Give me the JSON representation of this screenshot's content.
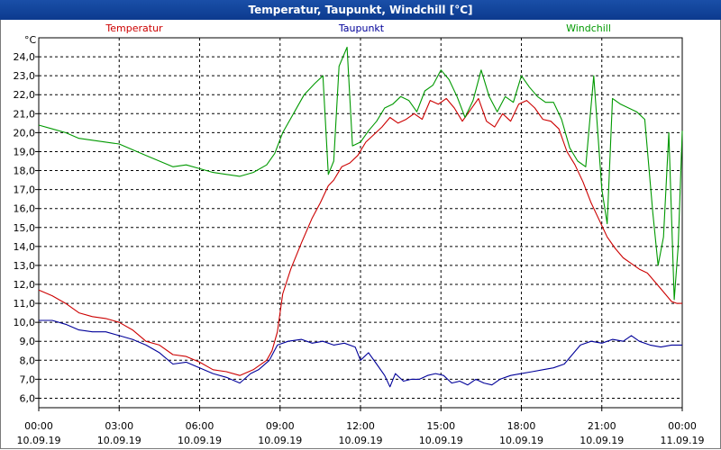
{
  "window": {
    "title": "Temperatur, Taupunkt, Windchill [°C]"
  },
  "chart_data": {
    "type": "line",
    "title": "Temperatur, Taupunkt, Windchill [°C]",
    "unit": "°C",
    "ylim": [
      5.5,
      25.0
    ],
    "yticks": [
      "6,0",
      "7,0",
      "8,0",
      "9,0",
      "10,0",
      "11,0",
      "12,0",
      "13,0",
      "14,0",
      "15,0",
      "16,0",
      "17,0",
      "18,0",
      "19,0",
      "20,0",
      "21,0",
      "22,0",
      "23,0",
      "24,0"
    ],
    "xlim": [
      0,
      24
    ],
    "xticks": [
      {
        "time": "00:00",
        "date": "10.09.19"
      },
      {
        "time": "03:00",
        "date": "10.09.19"
      },
      {
        "time": "06:00",
        "date": "10.09.19"
      },
      {
        "time": "09:00",
        "date": "10.09.19"
      },
      {
        "time": "12:00",
        "date": "10.09.19"
      },
      {
        "time": "15:00",
        "date": "10.09.19"
      },
      {
        "time": "18:00",
        "date": "10.09.19"
      },
      {
        "time": "21:00",
        "date": "10.09.19"
      },
      {
        "time": "00:00",
        "date": "11.09.19"
      }
    ],
    "grid": true,
    "series": [
      {
        "name": "Temperatur",
        "color": "#cc0000",
        "points": [
          [
            0,
            11.7
          ],
          [
            0.5,
            11.4
          ],
          [
            1,
            11.0
          ],
          [
            1.5,
            10.5
          ],
          [
            2,
            10.3
          ],
          [
            2.5,
            10.2
          ],
          [
            3,
            10.0
          ],
          [
            3.5,
            9.6
          ],
          [
            4,
            9.0
          ],
          [
            4.5,
            8.8
          ],
          [
            5,
            8.3
          ],
          [
            5.5,
            8.2
          ],
          [
            6,
            7.9
          ],
          [
            6.5,
            7.5
          ],
          [
            7,
            7.4
          ],
          [
            7.5,
            7.2
          ],
          [
            8,
            7.5
          ],
          [
            8.5,
            8.0
          ],
          [
            8.7,
            8.5
          ],
          [
            8.9,
            9.5
          ],
          [
            9.1,
            11.5
          ],
          [
            9.4,
            12.8
          ],
          [
            9.8,
            14.2
          ],
          [
            10.2,
            15.5
          ],
          [
            10.5,
            16.3
          ],
          [
            10.8,
            17.2
          ],
          [
            11.0,
            17.5
          ],
          [
            11.3,
            18.2
          ],
          [
            11.6,
            18.4
          ],
          [
            11.9,
            18.8
          ],
          [
            12.2,
            19.5
          ],
          [
            12.5,
            19.9
          ],
          [
            12.8,
            20.3
          ],
          [
            13.1,
            20.8
          ],
          [
            13.4,
            20.5
          ],
          [
            13.7,
            20.7
          ],
          [
            14.0,
            21.0
          ],
          [
            14.3,
            20.7
          ],
          [
            14.6,
            21.7
          ],
          [
            14.9,
            21.5
          ],
          [
            15.2,
            21.8
          ],
          [
            15.5,
            21.3
          ],
          [
            15.8,
            20.6
          ],
          [
            16.1,
            21.2
          ],
          [
            16.4,
            21.8
          ],
          [
            16.7,
            20.6
          ],
          [
            17.0,
            20.3
          ],
          [
            17.3,
            21.0
          ],
          [
            17.6,
            20.6
          ],
          [
            17.9,
            21.5
          ],
          [
            18.2,
            21.7
          ],
          [
            18.5,
            21.3
          ],
          [
            18.8,
            20.7
          ],
          [
            19.1,
            20.6
          ],
          [
            19.4,
            20.2
          ],
          [
            19.7,
            19.0
          ],
          [
            20.0,
            18.3
          ],
          [
            20.3,
            17.4
          ],
          [
            20.6,
            16.3
          ],
          [
            20.9,
            15.4
          ],
          [
            21.2,
            14.5
          ],
          [
            21.5,
            13.9
          ],
          [
            21.8,
            13.4
          ],
          [
            22.1,
            13.1
          ],
          [
            22.4,
            12.8
          ],
          [
            22.7,
            12.6
          ],
          [
            23.0,
            12.1
          ],
          [
            23.3,
            11.6
          ],
          [
            23.6,
            11.1
          ],
          [
            23.8,
            11.0
          ],
          [
            24,
            11.0
          ]
        ]
      },
      {
        "name": "Taupunkt",
        "color": "#000099",
        "points": [
          [
            0,
            10.1
          ],
          [
            0.5,
            10.1
          ],
          [
            1,
            9.9
          ],
          [
            1.5,
            9.6
          ],
          [
            2,
            9.5
          ],
          [
            2.5,
            9.5
          ],
          [
            3,
            9.3
          ],
          [
            3.5,
            9.1
          ],
          [
            4,
            8.8
          ],
          [
            4.5,
            8.4
          ],
          [
            5,
            7.8
          ],
          [
            5.5,
            7.9
          ],
          [
            6,
            7.6
          ],
          [
            6.5,
            7.3
          ],
          [
            7,
            7.1
          ],
          [
            7.5,
            6.8
          ],
          [
            7.9,
            7.3
          ],
          [
            8.2,
            7.5
          ],
          [
            8.6,
            8.0
          ],
          [
            8.9,
            8.8
          ],
          [
            9.3,
            9.0
          ],
          [
            9.8,
            9.1
          ],
          [
            10.2,
            8.9
          ],
          [
            10.6,
            9.0
          ],
          [
            11.0,
            8.8
          ],
          [
            11.4,
            8.9
          ],
          [
            11.8,
            8.7
          ],
          [
            12.0,
            8.0
          ],
          [
            12.3,
            8.4
          ],
          [
            12.6,
            7.8
          ],
          [
            12.9,
            7.2
          ],
          [
            13.1,
            6.6
          ],
          [
            13.3,
            7.3
          ],
          [
            13.6,
            6.9
          ],
          [
            13.9,
            7.0
          ],
          [
            14.2,
            7.0
          ],
          [
            14.5,
            7.2
          ],
          [
            14.8,
            7.3
          ],
          [
            15.1,
            7.2
          ],
          [
            15.4,
            6.8
          ],
          [
            15.7,
            6.9
          ],
          [
            16.0,
            6.7
          ],
          [
            16.3,
            7.0
          ],
          [
            16.6,
            6.8
          ],
          [
            16.9,
            6.7
          ],
          [
            17.2,
            7.0
          ],
          [
            17.6,
            7.2
          ],
          [
            18.0,
            7.3
          ],
          [
            18.4,
            7.4
          ],
          [
            18.8,
            7.5
          ],
          [
            19.2,
            7.6
          ],
          [
            19.6,
            7.8
          ],
          [
            19.9,
            8.3
          ],
          [
            20.2,
            8.8
          ],
          [
            20.6,
            9.0
          ],
          [
            21.0,
            8.9
          ],
          [
            21.4,
            9.1
          ],
          [
            21.8,
            9.0
          ],
          [
            22.1,
            9.3
          ],
          [
            22.4,
            9.0
          ],
          [
            22.8,
            8.8
          ],
          [
            23.2,
            8.7
          ],
          [
            23.6,
            8.8
          ],
          [
            24,
            8.8
          ]
        ]
      },
      {
        "name": "Windchill",
        "color": "#009900",
        "points": [
          [
            0,
            20.4
          ],
          [
            0.5,
            20.2
          ],
          [
            1,
            20.0
          ],
          [
            1.5,
            19.7
          ],
          [
            2,
            19.6
          ],
          [
            2.5,
            19.5
          ],
          [
            3,
            19.4
          ],
          [
            3.5,
            19.1
          ],
          [
            4,
            18.8
          ],
          [
            4.5,
            18.5
          ],
          [
            5,
            18.2
          ],
          [
            5.5,
            18.3
          ],
          [
            6,
            18.1
          ],
          [
            6.5,
            17.9
          ],
          [
            7,
            17.8
          ],
          [
            7.5,
            17.7
          ],
          [
            8,
            17.9
          ],
          [
            8.5,
            18.3
          ],
          [
            8.8,
            18.9
          ],
          [
            9.1,
            20.0
          ],
          [
            9.5,
            21.0
          ],
          [
            9.9,
            22.0
          ],
          [
            10.3,
            22.6
          ],
          [
            10.6,
            23.0
          ],
          [
            10.8,
            17.8
          ],
          [
            11.0,
            18.5
          ],
          [
            11.2,
            23.5
          ],
          [
            11.5,
            24.5
          ],
          [
            11.7,
            19.3
          ],
          [
            12.0,
            19.5
          ],
          [
            12.3,
            20.1
          ],
          [
            12.6,
            20.6
          ],
          [
            12.9,
            21.3
          ],
          [
            13.2,
            21.5
          ],
          [
            13.5,
            21.9
          ],
          [
            13.8,
            21.7
          ],
          [
            14.1,
            21.1
          ],
          [
            14.4,
            22.2
          ],
          [
            14.7,
            22.5
          ],
          [
            15.0,
            23.3
          ],
          [
            15.3,
            22.8
          ],
          [
            15.6,
            21.9
          ],
          [
            15.9,
            20.8
          ],
          [
            16.2,
            21.7
          ],
          [
            16.5,
            23.3
          ],
          [
            16.8,
            21.9
          ],
          [
            17.1,
            21.1
          ],
          [
            17.4,
            21.9
          ],
          [
            17.7,
            21.6
          ],
          [
            18.0,
            23.0
          ],
          [
            18.3,
            22.4
          ],
          [
            18.6,
            21.9
          ],
          [
            18.9,
            21.6
          ],
          [
            19.2,
            21.6
          ],
          [
            19.5,
            20.7
          ],
          [
            19.8,
            19.2
          ],
          [
            20.1,
            18.5
          ],
          [
            20.4,
            18.2
          ],
          [
            20.7,
            23.0
          ],
          [
            21.0,
            17.0
          ],
          [
            21.2,
            15.2
          ],
          [
            21.4,
            21.8
          ],
          [
            21.7,
            21.5
          ],
          [
            22.0,
            21.3
          ],
          [
            22.3,
            21.1
          ],
          [
            22.6,
            20.7
          ],
          [
            22.9,
            15.8
          ],
          [
            23.1,
            13.0
          ],
          [
            23.3,
            14.5
          ],
          [
            23.5,
            20.0
          ],
          [
            23.7,
            11.2
          ],
          [
            23.85,
            14.0
          ],
          [
            24,
            20.1
          ]
        ]
      }
    ]
  }
}
